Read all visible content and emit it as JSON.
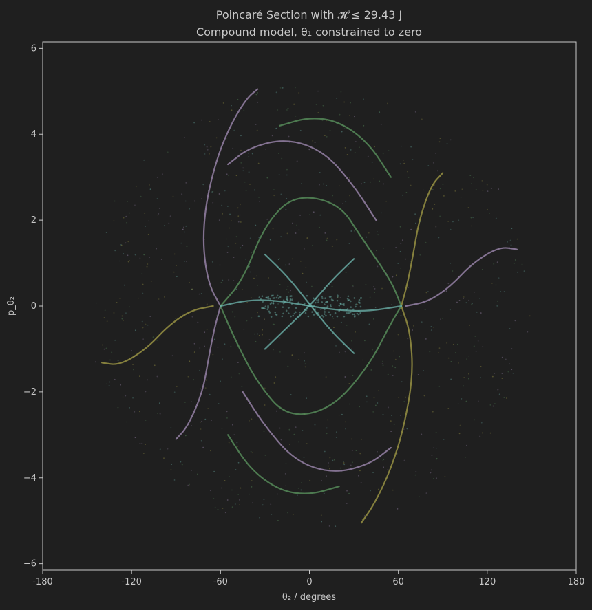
{
  "chart_data": {
    "type": "scatter",
    "title": "Poincaré Section with 𝓗 ≤ 29.43 J",
    "subtitle": "Compound model, θ₁ constrained to zero",
    "xlabel": "θ₂ / degrees",
    "ylabel": "p_θ₂",
    "xlim": [
      -180,
      180
    ],
    "ylim": [
      -6.15,
      6.15
    ],
    "x_ticks": [
      "-180",
      "-120",
      "-60",
      "0",
      "60",
      "120",
      "180"
    ],
    "x_tick_values": [
      -180,
      -120,
      -60,
      0,
      60,
      120,
      180
    ],
    "y_ticks": [
      "−6",
      "−4",
      "−2",
      "0",
      "2",
      "4",
      "6"
    ],
    "y_tick_values": [
      -6,
      -4,
      -2,
      0,
      2,
      4,
      6
    ],
    "grid": false,
    "legend": "none",
    "colors": {
      "background": "#1f1f1f",
      "axes": "#c8c8c8",
      "teal": "#6fb8b0",
      "green": "#5e9a62",
      "purple": "#a58fb8",
      "olive": "#a8a148"
    },
    "series": [
      {
        "color": "purple",
        "points": [
          [
            -35,
            5.05
          ],
          [
            -42,
            4.85
          ],
          [
            -52,
            4.3
          ],
          [
            -62,
            3.5
          ],
          [
            -70,
            2.4
          ],
          [
            -72,
            1.4
          ],
          [
            -68,
            0.5
          ],
          [
            -60,
            0.0
          ]
        ]
      },
      {
        "color": "purple",
        "points": [
          [
            -90,
            -3.1
          ],
          [
            -82,
            -2.8
          ],
          [
            -72,
            -2.0
          ],
          [
            -68,
            -1.2
          ],
          [
            -64,
            -0.5
          ],
          [
            -60,
            0.0
          ]
        ]
      },
      {
        "color": "purple",
        "points": [
          [
            140,
            1.32
          ],
          [
            128,
            1.38
          ],
          [
            110,
            1.0
          ],
          [
            95,
            0.45
          ],
          [
            80,
            0.1
          ],
          [
            65,
            0.0
          ]
        ]
      },
      {
        "color": "olive",
        "points": [
          [
            -140,
            -1.32
          ],
          [
            -128,
            -1.38
          ],
          [
            -110,
            -1.0
          ],
          [
            -95,
            -0.45
          ],
          [
            -80,
            -0.1
          ],
          [
            -65,
            0.0
          ]
        ]
      },
      {
        "color": "olive",
        "points": [
          [
            90,
            3.1
          ],
          [
            82,
            2.8
          ],
          [
            74,
            2.0
          ],
          [
            70,
            1.2
          ],
          [
            66,
            0.5
          ],
          [
            62,
            0.0
          ]
        ]
      },
      {
        "color": "olive",
        "points": [
          [
            35,
            -5.05
          ],
          [
            44,
            -4.6
          ],
          [
            55,
            -3.8
          ],
          [
            64,
            -2.8
          ],
          [
            70,
            -1.6
          ],
          [
            68,
            -0.6
          ],
          [
            62,
            0.0
          ]
        ]
      },
      {
        "color": "green",
        "points": [
          [
            -60,
            0.0
          ],
          [
            -45,
            0.6
          ],
          [
            -30,
            1.9
          ],
          [
            -10,
            2.6
          ],
          [
            20,
            2.4
          ],
          [
            35,
            1.6
          ],
          [
            55,
            0.6
          ],
          [
            62,
            0.0
          ]
        ]
      },
      {
        "color": "green",
        "points": [
          [
            -60,
            0.0
          ],
          [
            -50,
            -0.8
          ],
          [
            -35,
            -1.8
          ],
          [
            -15,
            -2.6
          ],
          [
            15,
            -2.4
          ],
          [
            40,
            -1.4
          ],
          [
            55,
            -0.4
          ],
          [
            62,
            0.0
          ]
        ]
      },
      {
        "color": "purple",
        "points": [
          [
            -55,
            3.3
          ],
          [
            -40,
            3.7
          ],
          [
            -15,
            3.9
          ],
          [
            10,
            3.6
          ],
          [
            30,
            2.8
          ],
          [
            45,
            2.0
          ]
        ]
      },
      {
        "color": "purple",
        "points": [
          [
            55,
            -3.3
          ],
          [
            40,
            -3.7
          ],
          [
            15,
            -3.9
          ],
          [
            -10,
            -3.6
          ],
          [
            -30,
            -2.8
          ],
          [
            -45,
            -2.0
          ]
        ]
      },
      {
        "color": "teal",
        "points": [
          [
            -60,
            0.0
          ],
          [
            -40,
            0.15
          ],
          [
            -20,
            0.12
          ],
          [
            0,
            0.0
          ],
          [
            20,
            -0.1
          ],
          [
            40,
            -0.12
          ],
          [
            62,
            0.0
          ]
        ]
      },
      {
        "color": "teal",
        "points": [
          [
            -30,
            1.2
          ],
          [
            -15,
            0.7
          ],
          [
            0,
            0.05
          ],
          [
            15,
            -0.6
          ],
          [
            30,
            -1.1
          ]
        ]
      },
      {
        "color": "teal",
        "points": [
          [
            -30,
            -1.0
          ],
          [
            -15,
            -0.5
          ],
          [
            0,
            0.0
          ],
          [
            15,
            0.6
          ],
          [
            30,
            1.1
          ]
        ]
      },
      {
        "color": "green",
        "points": [
          [
            -20,
            4.2
          ],
          [
            0,
            4.4
          ],
          [
            20,
            4.3
          ],
          [
            40,
            3.8
          ],
          [
            55,
            3.0
          ]
        ]
      },
      {
        "color": "green",
        "points": [
          [
            20,
            -4.2
          ],
          [
            0,
            -4.4
          ],
          [
            -20,
            -4.3
          ],
          [
            -40,
            -3.8
          ],
          [
            -55,
            -3.0
          ]
        ]
      }
    ]
  }
}
